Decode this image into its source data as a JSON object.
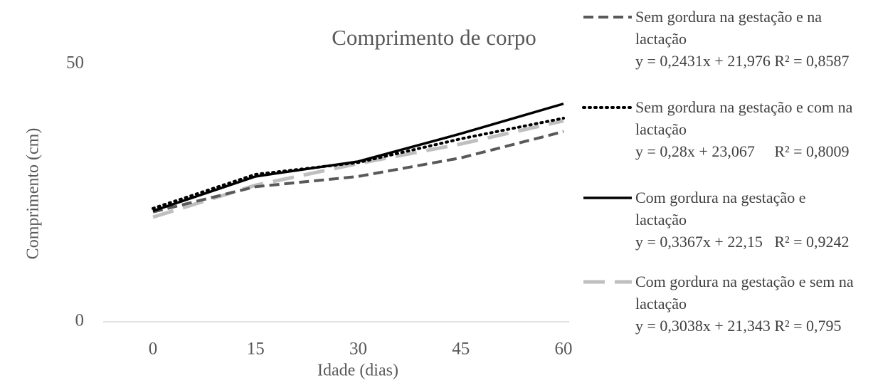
{
  "chart_data": {
    "type": "line",
    "title": "Comprimento de corpo",
    "x_label": "Idade (dias)",
    "y_label": "Comprimento (cm)",
    "x": [
      0,
      15,
      30,
      45,
      60
    ],
    "xlim": [
      0,
      60
    ],
    "xticks": [
      0,
      15,
      30,
      45,
      60
    ],
    "ylim": [
      0,
      50
    ],
    "yticks": [
      0,
      50
    ],
    "series": [
      {
        "name": "Sem gordura na gestação e na lactação",
        "trendline": "y = 0,2431x + 21,976 R² = 0,8587",
        "color": "#595959",
        "dash": "dashed",
        "values": [
          21.3,
          26.2,
          28.2,
          31.8,
          36.9
        ]
      },
      {
        "name": "Sem gordura na gestação e com na lactação",
        "trendline": "y = 0,28x + 23,067     R² = 0,8009",
        "color": "#000000",
        "dash": "dotted",
        "values": [
          22.0,
          28.6,
          30.9,
          35.5,
          39.5
        ]
      },
      {
        "name": "Com gordura na gestação e lactação",
        "trendline": "y = 0,3367x + 22,15   R² = 0,9242",
        "color": "#000000",
        "dash": "solid",
        "values": [
          21.5,
          28.2,
          31.1,
          36.5,
          42.3
        ]
      },
      {
        "name": "Com gordura na gestação e sem na lactação",
        "trendline": "y = 0,3038x + 21,343 R² = 0,795",
        "color": "#bfbfbf",
        "dash": "longdash",
        "values": [
          20.3,
          26.5,
          30.7,
          34.5,
          39.0
        ]
      }
    ]
  }
}
